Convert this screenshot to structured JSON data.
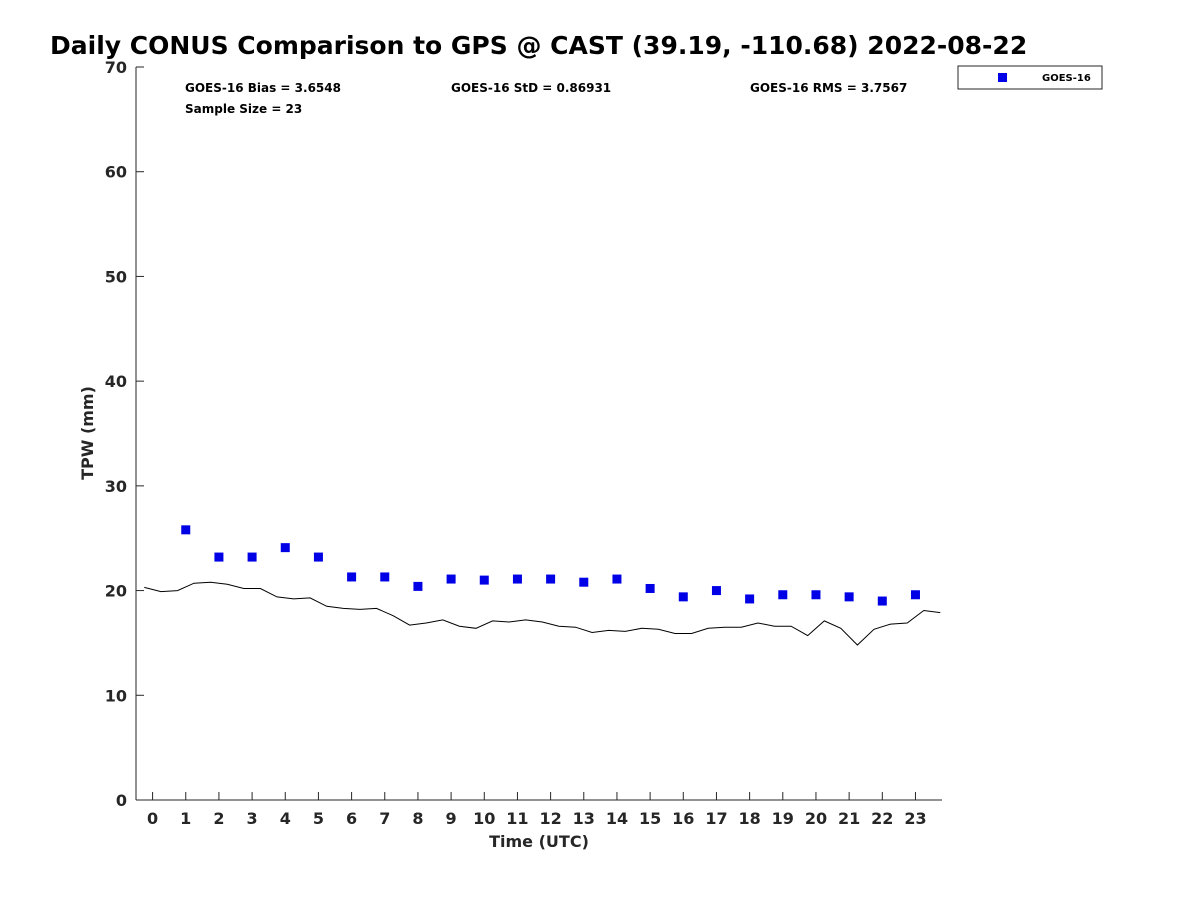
{
  "chart_data": {
    "type": "scatter",
    "title": "Daily CONUS Comparison to GPS @ CAST (39.19, -110.68) 2022-08-22",
    "xlabel": "Time (UTC)",
    "ylabel": "TPW (mm)",
    "xlim": [
      -0.5,
      23.8
    ],
    "ylim": [
      0,
      70
    ],
    "x_ticks": [
      0,
      1,
      2,
      3,
      4,
      5,
      6,
      7,
      8,
      9,
      10,
      11,
      12,
      13,
      14,
      15,
      16,
      17,
      18,
      19,
      20,
      21,
      22,
      23
    ],
    "y_ticks": [
      0,
      10,
      20,
      30,
      40,
      50,
      60,
      70
    ],
    "grid": false,
    "legend_position": "top-right",
    "series": [
      {
        "name": "GOES-16",
        "kind": "markers",
        "color": "#0000e6",
        "x": [
          1,
          2,
          3,
          4,
          5,
          6,
          7,
          8,
          9,
          10,
          11,
          12,
          13,
          14,
          15,
          16,
          17,
          18,
          19,
          20,
          21,
          22,
          23
        ],
        "y": [
          25.8,
          23.2,
          23.2,
          24.1,
          23.2,
          21.3,
          21.3,
          20.4,
          21.1,
          21.0,
          21.1,
          21.1,
          20.8,
          21.1,
          20.2,
          19.4,
          20.0,
          19.2,
          19.6,
          19.6,
          19.4,
          19.0,
          19.6
        ]
      },
      {
        "kind": "line",
        "color": "#000000",
        "x": [
          -0.25,
          0.25,
          0.75,
          1.25,
          1.75,
          2.25,
          2.75,
          3.25,
          3.75,
          4.25,
          4.75,
          5.25,
          5.75,
          6.25,
          6.75,
          7.25,
          7.75,
          8.25,
          8.75,
          9.25,
          9.75,
          10.25,
          10.75,
          11.25,
          11.75,
          12.25,
          12.75,
          13.25,
          13.75,
          14.25,
          14.75,
          15.25,
          15.75,
          16.25,
          16.75,
          17.25,
          17.75,
          18.25,
          18.75,
          19.25,
          19.75,
          20.25,
          20.75,
          21.25,
          21.75,
          22.25,
          22.75,
          23.25,
          23.75
        ],
        "y": [
          20.3,
          19.9,
          20.0,
          20.7,
          20.8,
          20.6,
          20.2,
          20.2,
          19.4,
          19.2,
          19.3,
          18.5,
          18.3,
          18.2,
          18.3,
          17.6,
          16.7,
          16.9,
          17.2,
          16.6,
          16.4,
          17.1,
          17.0,
          17.2,
          17.0,
          16.6,
          16.5,
          16.0,
          16.2,
          16.1,
          16.4,
          16.3,
          15.9,
          15.9,
          16.4,
          16.5,
          16.5,
          16.9,
          16.6,
          16.6,
          15.7,
          17.1,
          16.4,
          14.8,
          16.3,
          16.8,
          16.9,
          18.1,
          17.9
        ]
      }
    ],
    "annotations": {
      "bias": "GOES-16 Bias = 3.6548",
      "std": "GOES-16 StD = 0.86931",
      "rms": "GOES-16 RMS = 3.7567",
      "sample": "Sample Size = 23"
    },
    "legend_entries": [
      "GOES-16"
    ]
  }
}
